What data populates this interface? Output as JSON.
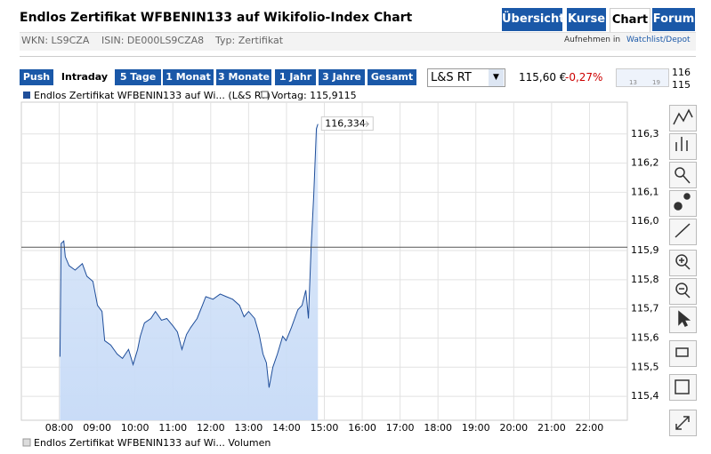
{
  "header": {
    "title": "Endlos Zertifikat WFBENIN133 auf Wikifolio-Index Chart",
    "tabs": [
      "Übersicht",
      "Kurse",
      "Chart",
      "Forum"
    ],
    "wkn": "WKN: LS9CZA",
    "isin": "ISIN: DE000LS9CZA8",
    "typ": "Typ: Zertifikat",
    "watchlist_prefix": "Aufnehmen in",
    "watchlist_link": "Watchlist/Depot"
  },
  "toolbar": {
    "ranges": [
      "Push",
      "Intraday",
      "5 Tage",
      "1 Monat",
      "3 Monate",
      "1 Jahr",
      "3 Jahre",
      "Gesamt"
    ],
    "exchange": "L&S RT",
    "price": "115,60 €",
    "change": "-0,27%"
  },
  "mini_chart": {
    "ylabels": [
      "116",
      "115"
    ],
    "xlabels": [
      "13",
      "19"
    ]
  },
  "chart_data": {
    "type": "line",
    "x": [
      8.02,
      8.05,
      8.12,
      8.16,
      8.26,
      8.42,
      8.61,
      8.73,
      8.89,
      9.01,
      9.13,
      9.2,
      9.36,
      9.53,
      9.67,
      9.83,
      9.95,
      10.07,
      10.14,
      10.25,
      10.42,
      10.54,
      10.7,
      10.84,
      11.0,
      11.12,
      11.24,
      11.36,
      11.47,
      11.64,
      11.78,
      11.87,
      12.06,
      12.25,
      12.41,
      12.58,
      12.76,
      12.88,
      13.0,
      13.16,
      13.28,
      13.38,
      13.47,
      13.54,
      13.64,
      13.76,
      13.9,
      13.99,
      14.13,
      14.3,
      14.41,
      14.51,
      14.58,
      14.65,
      14.72,
      14.79,
      14.83
    ],
    "series": [
      {
        "name": "Endlos Zertifikat WFBENIN133 auf Wi... (L&S RT)",
        "color": "#1f4e9a",
        "fill": "#c9dcf7",
        "values": [
          115.536,
          115.924,
          115.933,
          115.879,
          115.848,
          115.833,
          115.855,
          115.812,
          115.794,
          115.712,
          115.691,
          115.591,
          115.576,
          115.545,
          115.53,
          115.561,
          115.509,
          115.561,
          115.606,
          115.652,
          115.667,
          115.691,
          115.661,
          115.667,
          115.642,
          115.621,
          115.561,
          115.612,
          115.636,
          115.667,
          115.712,
          115.742,
          115.733,
          115.751,
          115.742,
          115.733,
          115.712,
          115.673,
          115.691,
          115.667,
          115.612,
          115.545,
          115.515,
          115.43,
          115.5,
          115.545,
          115.606,
          115.591,
          115.636,
          115.697,
          115.712,
          115.764,
          115.667,
          115.909,
          116.091,
          116.318,
          116.334
        ]
      }
    ],
    "reference_line": {
      "value": 115.9115,
      "label": "Vortag: 115,9115"
    },
    "annotation": {
      "value": 116.334,
      "label": "116,334"
    },
    "volume_legend": "Endlos Zertifikat WFBENIN133 auf Wi... Volumen",
    "xlim": [
      7,
      23
    ],
    "xticks": [
      {
        "value": 8,
        "label": "08:00"
      },
      {
        "value": 9,
        "label": "09:00"
      },
      {
        "value": 10,
        "label": "10:00"
      },
      {
        "value": 11,
        "label": "11:00"
      },
      {
        "value": 12,
        "label": "12:00"
      },
      {
        "value": 13,
        "label": "13:00"
      },
      {
        "value": 14,
        "label": "14:00"
      },
      {
        "value": 15,
        "label": "15:00"
      },
      {
        "value": 16,
        "label": "16:00"
      },
      {
        "value": 17,
        "label": "17:00"
      },
      {
        "value": 18,
        "label": "18:00"
      },
      {
        "value": 19,
        "label": "19:00"
      },
      {
        "value": 20,
        "label": "20:00"
      },
      {
        "value": 21,
        "label": "21:00"
      },
      {
        "value": 22,
        "label": "22:00"
      }
    ],
    "ylim": [
      115.318,
      116.409
    ],
    "yticks": [
      {
        "value": 115.4,
        "label": "115,4"
      },
      {
        "value": 115.5,
        "label": "115,5"
      },
      {
        "value": 115.6,
        "label": "115,6"
      },
      {
        "value": 115.7,
        "label": "115,7"
      },
      {
        "value": 115.8,
        "label": "115,8"
      },
      {
        "value": 115.9,
        "label": "115,9"
      },
      {
        "value": 116.0,
        "label": "116,0"
      },
      {
        "value": 116.1,
        "label": "116,1"
      },
      {
        "value": 116.2,
        "label": "116,2"
      },
      {
        "value": 116.3,
        "label": "116,3"
      }
    ],
    "grid": true
  }
}
